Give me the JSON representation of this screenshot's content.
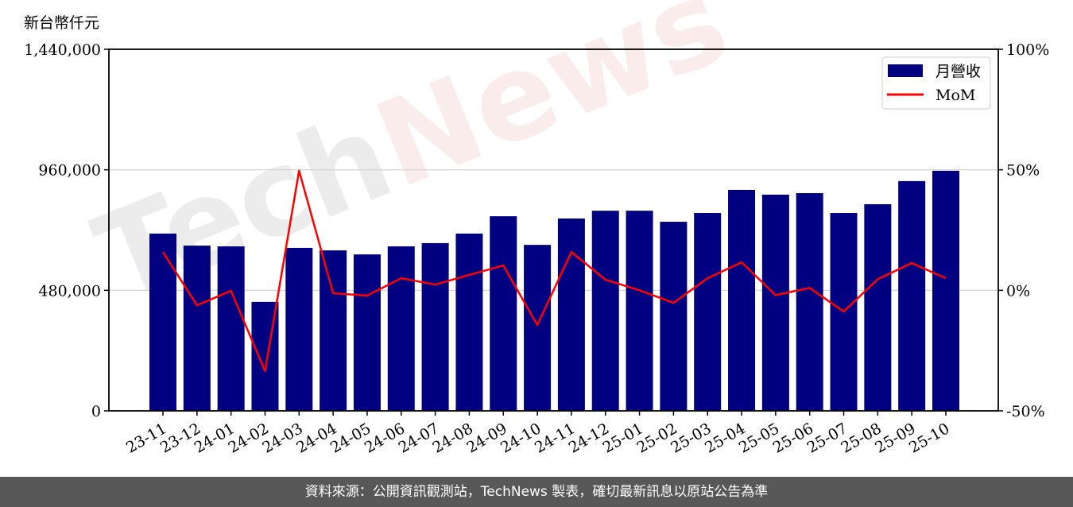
{
  "chart_data": {
    "type": "bar+line",
    "unit_label": "新台幣仟元",
    "categories": [
      "23-11",
      "23-12",
      "24-01",
      "24-02",
      "24-03",
      "24-04",
      "24-05",
      "24-06",
      "24-07",
      "24-08",
      "24-09",
      "24-10",
      "24-11",
      "24-12",
      "25-01",
      "25-02",
      "25-03",
      "25-04",
      "25-05",
      "25-06",
      "25-07",
      "25-08",
      "25-09",
      "25-10"
    ],
    "series": [
      {
        "name": "月營收",
        "type": "bar",
        "axis": "left",
        "color": "#000080",
        "values": [
          706000,
          658000,
          655000,
          434000,
          649000,
          639000,
          623000,
          655000,
          668000,
          706000,
          775000,
          661000,
          766000,
          797000,
          797000,
          753000,
          788000,
          880000,
          861000,
          867000,
          788000,
          823000,
          915000,
          956000
        ]
      },
      {
        "name": "MoM",
        "type": "line",
        "axis": "right",
        "color": "#ff0000",
        "values": [
          15.9,
          -6.2,
          -0.2,
          -33.5,
          49.6,
          -1.2,
          -2.2,
          5.0,
          2.4,
          6.4,
          10.3,
          -14.4,
          15.9,
          4.4,
          0.0,
          -5.2,
          5.0,
          11.6,
          -2.0,
          1.0,
          -8.8,
          4.6,
          11.3,
          5.0
        ]
      }
    ],
    "left_axis": {
      "ylim": [
        0,
        1440000
      ],
      "ticks": [
        "0",
        "480,000",
        "960,000",
        "1,440,000"
      ],
      "tick_values": [
        0,
        480000,
        960000,
        1440000
      ]
    },
    "right_axis": {
      "ylim": [
        -50,
        100
      ],
      "ticks": [
        "-50%",
        "0%",
        "50%",
        "100%"
      ],
      "tick_values": [
        -50,
        0,
        50,
        100
      ]
    },
    "grid": "horizontal",
    "legend": "top-right",
    "watermark": "TechNews"
  },
  "footer": "資料來源：公開資訊觀測站，TechNews 製表，確切最新訊息以原站公告為準"
}
